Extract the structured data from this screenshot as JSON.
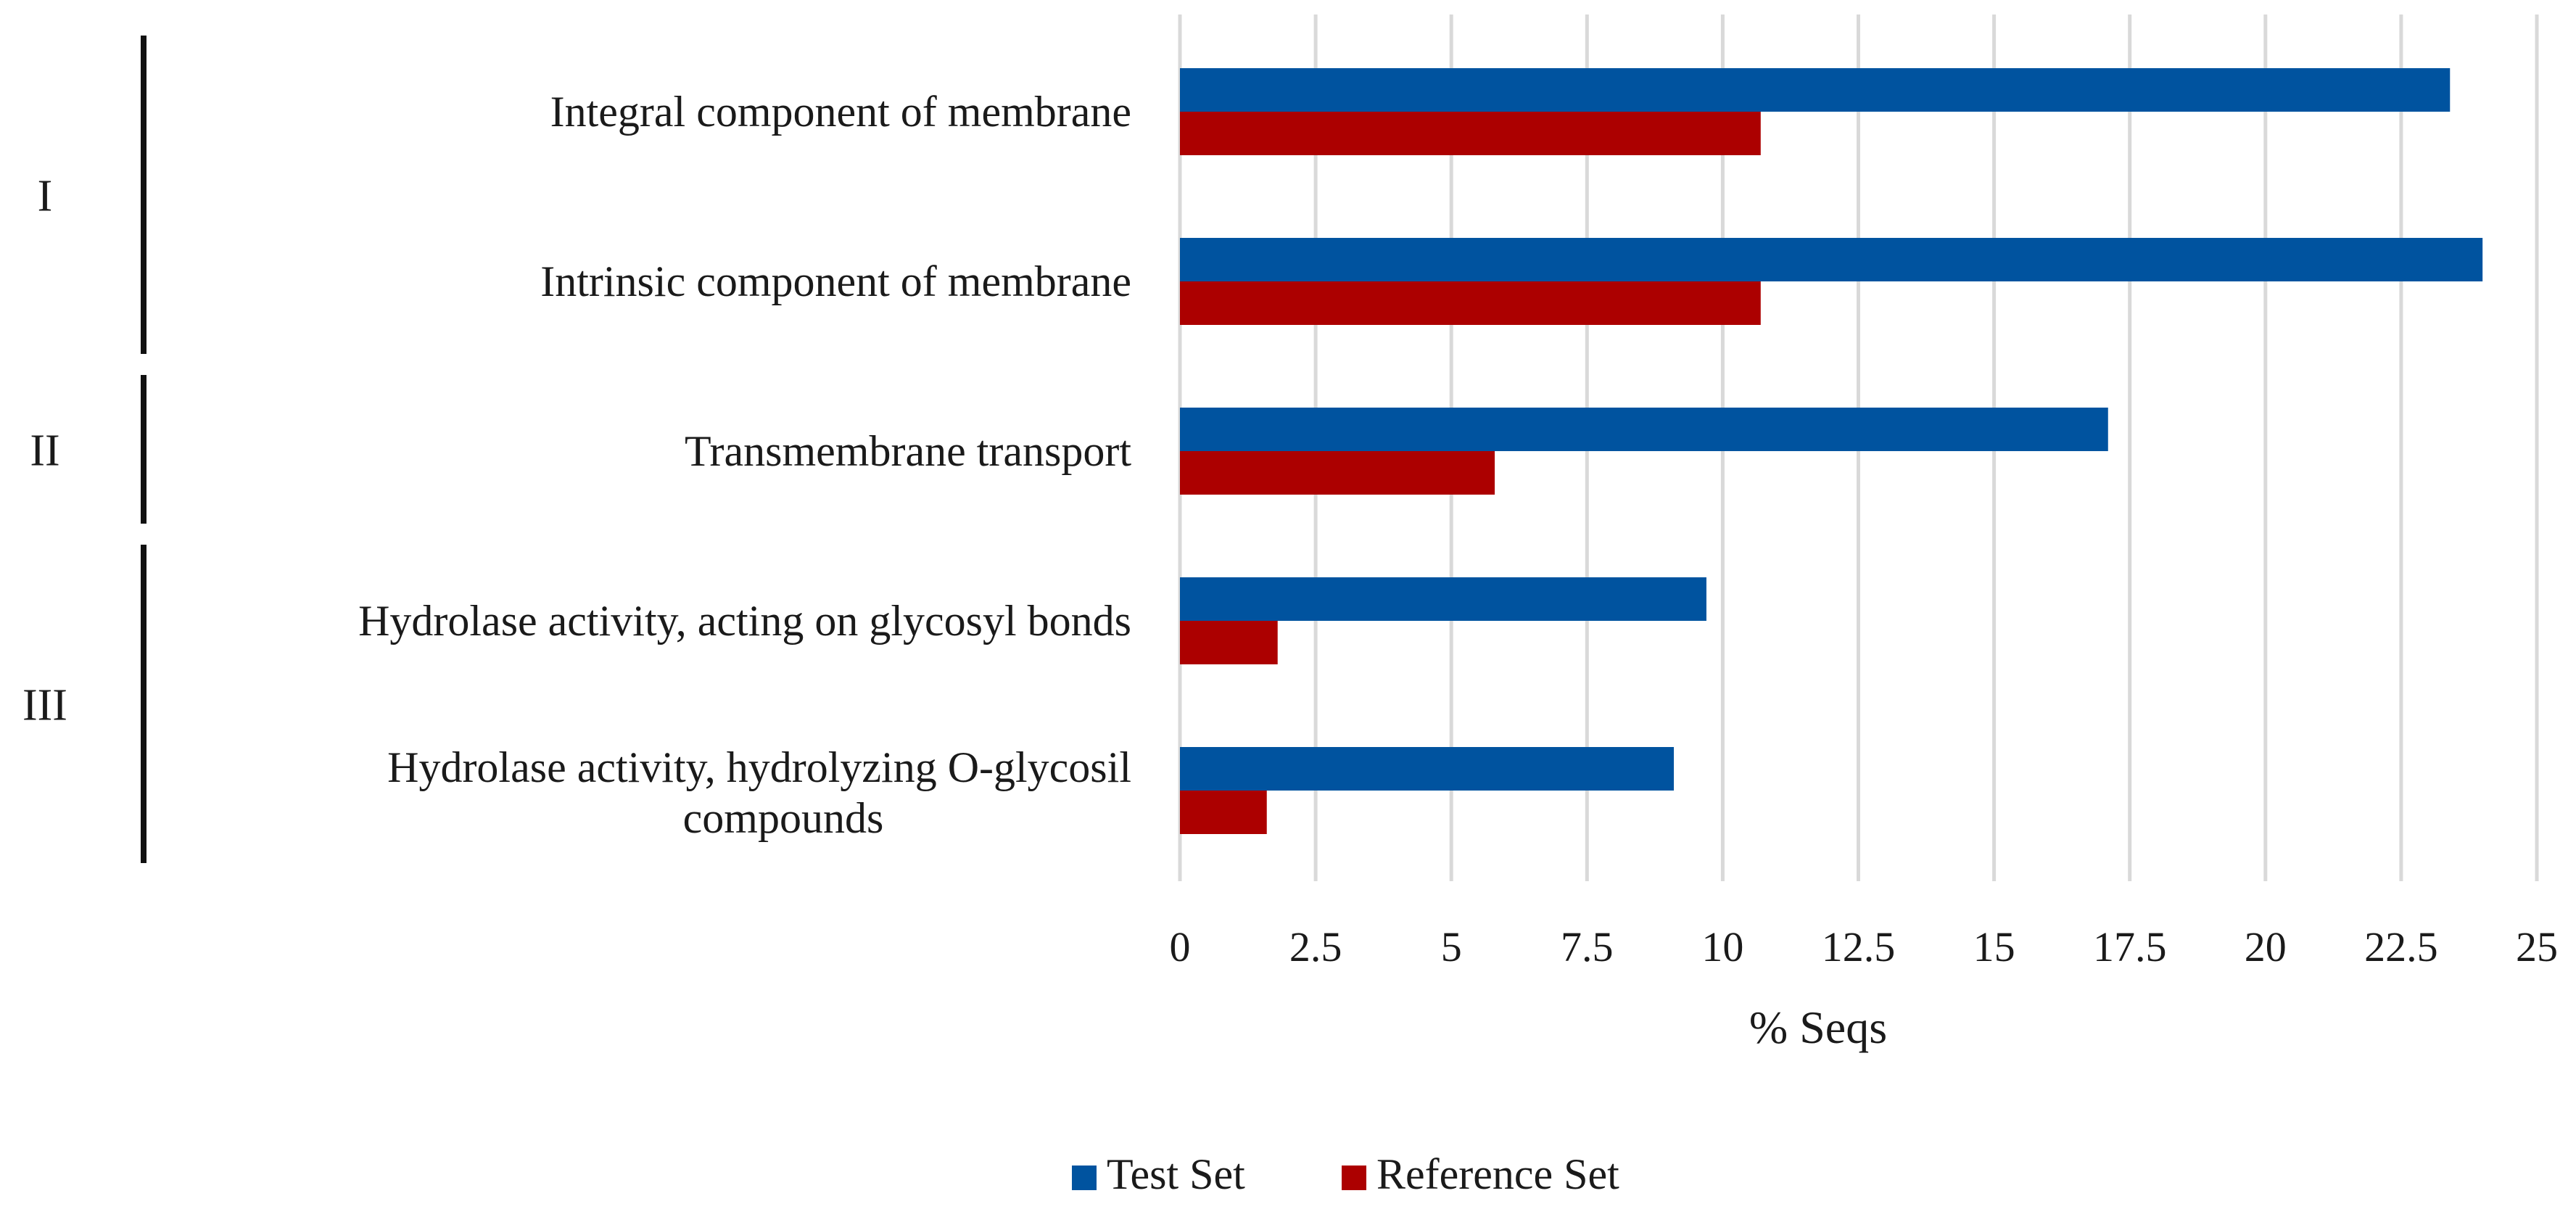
{
  "chart_data": {
    "type": "bar",
    "orientation": "horizontal",
    "categories": [
      [
        "Integral component of membrane"
      ],
      [
        "Intrinsic component of membrane"
      ],
      [
        "Transmembrane transport"
      ],
      [
        "Hydrolase activity, acting on glycosyl bonds"
      ],
      [
        "Hydrolase activity, hydrolyzing O-glycosil",
        "compounds"
      ]
    ],
    "series": [
      {
        "name": "Test Set",
        "color": "#00539f",
        "values": [
          23.4,
          24.0,
          17.1,
          9.7,
          9.1
        ]
      },
      {
        "name": "Reference Set",
        "color": "#ac0000",
        "values": [
          10.7,
          10.7,
          5.8,
          1.8,
          1.6
        ]
      }
    ],
    "groups": [
      {
        "label": "I",
        "categories": [
          0,
          1
        ]
      },
      {
        "label": "II",
        "categories": [
          2
        ]
      },
      {
        "label": "III",
        "categories": [
          3,
          4
        ]
      }
    ],
    "xlabel": "% Seqs",
    "ylabel": "",
    "title": "",
    "xlim": [
      0,
      25
    ],
    "xticks": [
      "0",
      "2.5",
      "5",
      "7.5",
      "10",
      "12.5",
      "15",
      "17.5",
      "20",
      "22.5",
      "25"
    ],
    "grid": "vertical",
    "legend": "bottom"
  }
}
